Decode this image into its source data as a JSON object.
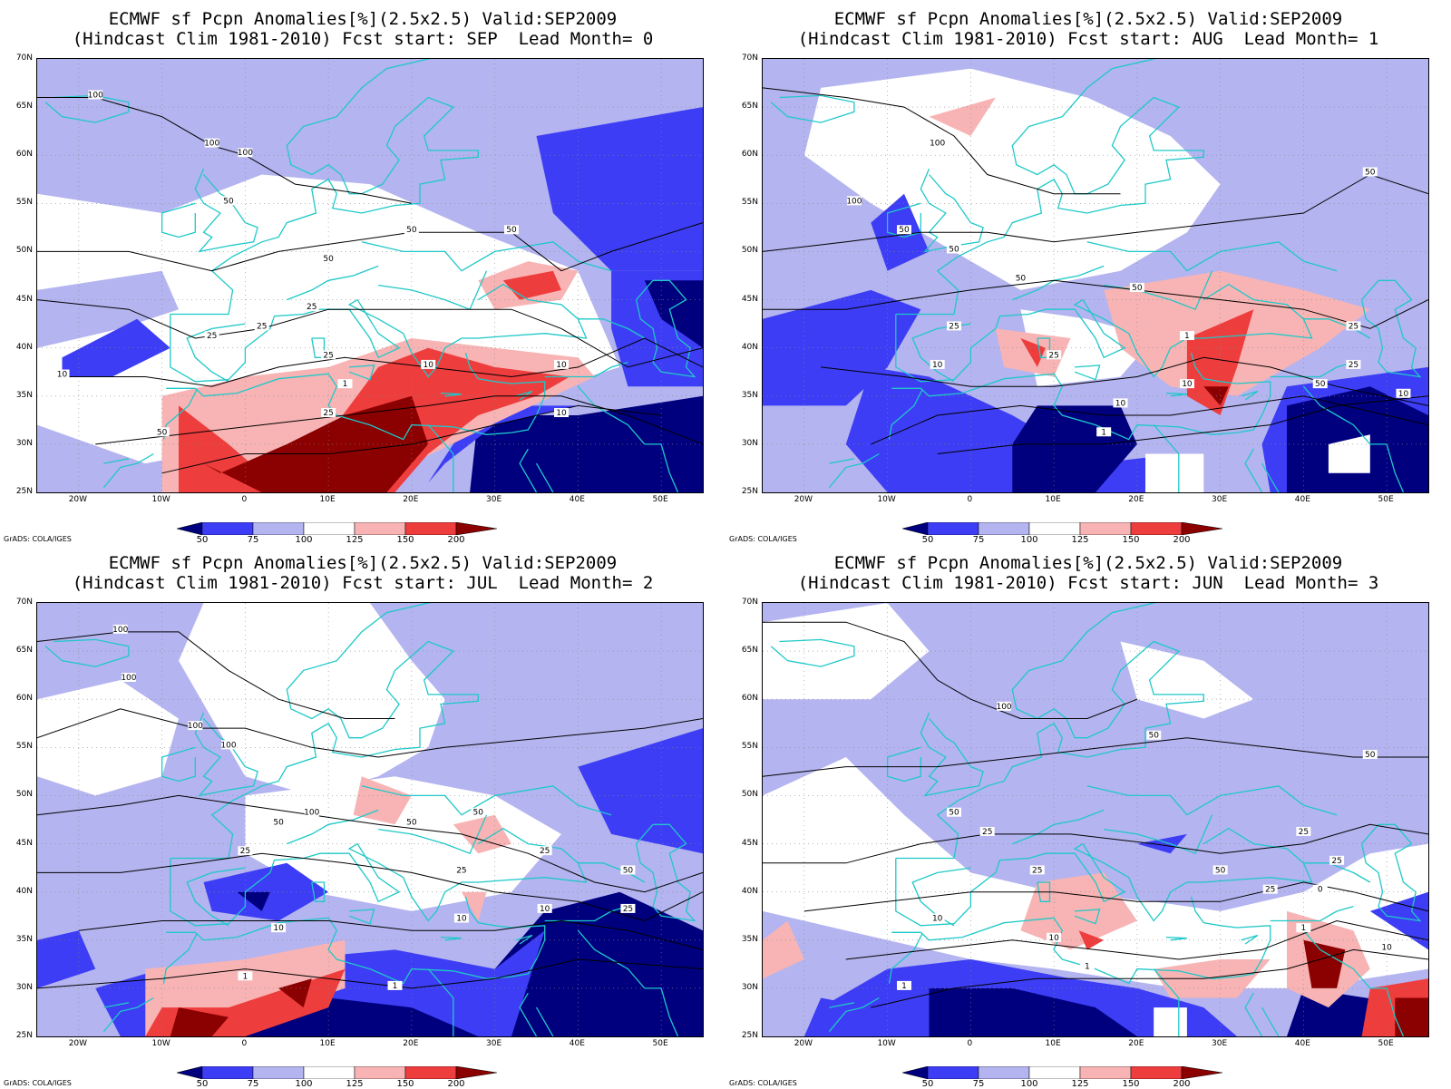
{
  "panels": [
    {
      "title_line1": "ECMWF sf Pcpn Anomalies[%](2.5x2.5) Valid:SEP2009",
      "title_line2": "(Hindcast Clim 1981-2010) Fcst start: SEP  Lead Month= 0"
    },
    {
      "title_line1": "ECMWF sf Pcpn Anomalies[%](2.5x2.5) Valid:SEP2009",
      "title_line2": "(Hindcast Clim 1981-2010) Fcst start: AUG  Lead Month= 1"
    },
    {
      "title_line1": "ECMWF sf Pcpn Anomalies[%](2.5x2.5) Valid:SEP2009",
      "title_line2": "(Hindcast Clim 1981-2010) Fcst start: JUL  Lead Month= 2"
    },
    {
      "title_line1": "ECMWF sf Pcpn Anomalies[%](2.5x2.5) Valid:SEP2009",
      "title_line2": "(Hindcast Clim 1981-2010) Fcst start: JUN  Lead Month= 3"
    }
  ],
  "lat_labels": [
    "70N",
    "65N",
    "60N",
    "55N",
    "50N",
    "45N",
    "40N",
    "35N",
    "30N",
    "25N"
  ],
  "lon_labels": [
    "20W",
    "10W",
    "0",
    "10E",
    "20E",
    "30E",
    "40E",
    "50E"
  ],
  "colorbar_labels": [
    "50",
    "75",
    "100",
    "125",
    "150",
    "200"
  ],
  "colorbar_colors": [
    "#00007f",
    "#3d3df5",
    "#b4b4f0",
    "#ffffff",
    "#f8b4b4",
    "#ee3d3d",
    "#8b0000"
  ],
  "contour_labels": {
    "p1": [
      "100",
      "100",
      "100",
      "50",
      "50",
      "50",
      "50",
      "25",
      "25",
      "25",
      "25",
      "10",
      "10",
      "10",
      "1",
      "50",
      "25",
      "10"
    ],
    "p2": [
      "100",
      "100",
      "50",
      "50",
      "50",
      "50",
      "25",
      "25",
      "10",
      "10",
      "10",
      "1",
      "1",
      "25",
      "50",
      "10",
      "50",
      "25"
    ],
    "p3": [
      "100",
      "100",
      "100",
      "100",
      "50",
      "50",
      "25",
      "25",
      "10",
      "10",
      "1",
      "1",
      "25",
      "50",
      "25",
      "10",
      "50",
      "100"
    ],
    "p4": [
      "100",
      "50",
      "50",
      "50",
      "25",
      "25",
      "10",
      "10",
      "1",
      "1",
      "25",
      "10",
      "50",
      "25",
      "25",
      "0",
      "1"
    ]
  },
  "footer": "GrADS: COLA/IGES"
}
